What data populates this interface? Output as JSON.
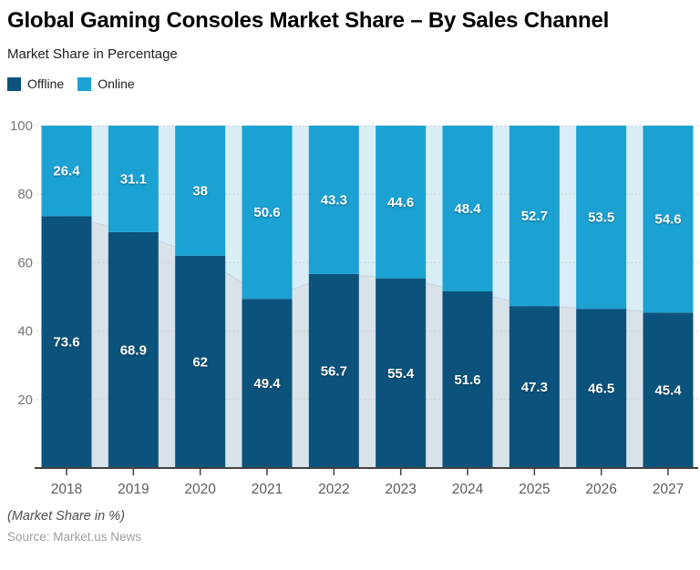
{
  "header": {
    "title": "Global Gaming Consoles Market Share – By Sales Channel",
    "subtitle": "Market Share in Percentage"
  },
  "legend": {
    "items": [
      {
        "label": "Offline",
        "color": "#0b537c"
      },
      {
        "label": "Online",
        "color": "#1ca1d3"
      }
    ]
  },
  "footer": {
    "footnote": "(Market Share in %)",
    "source": "Source: Market.us News"
  },
  "chart_data": {
    "type": "bar",
    "stacked": true,
    "title": "Global Gaming Consoles Market Share – By Sales Channel",
    "subtitle": "Market Share in Percentage",
    "categories": [
      "2018",
      "2019",
      "2020",
      "2021",
      "2022",
      "2023",
      "2024",
      "2025",
      "2026",
      "2027"
    ],
    "series": [
      {
        "name": "Offline",
        "color": "#0b537c",
        "silhouette_color": "#dae2e9",
        "values": [
          73.6,
          68.9,
          62,
          49.4,
          56.7,
          55.4,
          51.6,
          47.3,
          46.5,
          45.4
        ]
      },
      {
        "name": "Online",
        "color": "#1ca1d3",
        "silhouette_color": "#d9edf7",
        "values": [
          26.4,
          31.1,
          38,
          50.6,
          43.3,
          44.6,
          48.4,
          52.7,
          53.5,
          54.6
        ]
      }
    ],
    "xlabel": "",
    "ylabel": "",
    "ylim": [
      0,
      100
    ],
    "yticks": [
      20,
      40,
      60,
      80,
      100
    ],
    "grid": true,
    "grid_style": "dotted",
    "legend_position": "top-left",
    "background": "faint stacked area silhouette of the same series behind the bars",
    "colors": {
      "axis": "#424242",
      "grid": "#c9c9c9",
      "ytick_label": "#757575",
      "xtick_label": "#5c5c5c",
      "bar_value_label": "#ffffff",
      "silhouette_edge": "#c5d2da"
    }
  }
}
